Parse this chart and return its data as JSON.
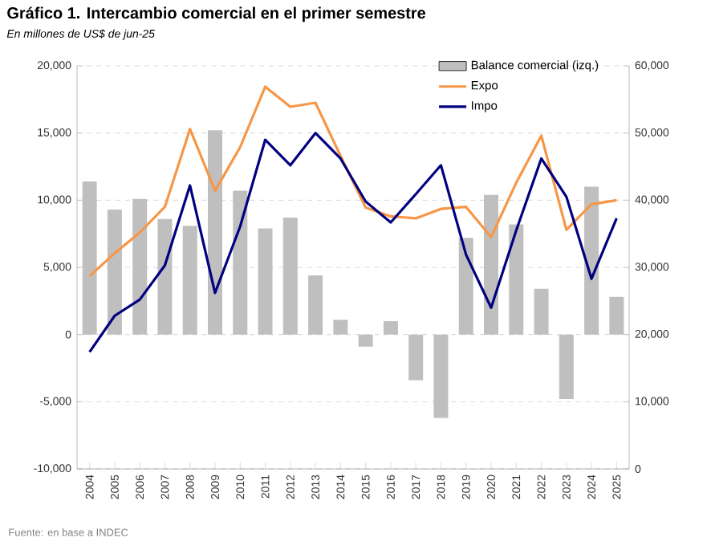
{
  "chart_data": {
    "type": "bar",
    "title": "Gráfico 1. Intercambio comercial en el primer semestre",
    "subtitle": "En millones de US$ de jun-25",
    "annotations": [
      "Fuente: en base a INDEC"
    ],
    "categories": [
      "2004",
      "2005",
      "2006",
      "2007",
      "2008",
      "2009",
      "2010",
      "2011",
      "2012",
      "2013",
      "2014",
      "2015",
      "2016",
      "2017",
      "2018",
      "2019",
      "2020",
      "2021",
      "2022",
      "2023",
      "2024",
      "2025"
    ],
    "series": [
      {
        "name": "Balance comercial (izq.)",
        "color": "#bfbfbf",
        "values": [
          11400,
          9300,
          10100,
          8600,
          8100,
          15200,
          10700,
          7900,
          8700,
          4400,
          1100,
          -900,
          1000,
          -3400,
          -6200,
          7200,
          10400,
          8200,
          3400,
          -4800,
          11000,
          2800
        ]
      },
      {
        "name": "Expo",
        "type": "line",
        "axis": "y2",
        "color": "#f79646",
        "values": [
          28700,
          32100,
          35200,
          39000,
          50600,
          41400,
          47900,
          56900,
          53900,
          54500,
          46600,
          38900,
          37600,
          37300,
          38700,
          39000,
          34500,
          42600,
          49600,
          35600,
          39400,
          40000
        ]
      },
      {
        "name": "Impo",
        "type": "line",
        "axis": "y2",
        "color": "#000080",
        "values": [
          17400,
          22800,
          25200,
          30300,
          42200,
          26200,
          36100,
          49000,
          45200,
          50000,
          46200,
          39800,
          36700,
          40900,
          45200,
          31900,
          24000,
          35500,
          46200,
          40500,
          28300,
          37300
        ]
      }
    ],
    "ylim": [
      -10000,
      20000
    ],
    "yticks": [
      {
        "value": -10000,
        "label": "-10,000"
      },
      {
        "value": -5000,
        "label": "-5,000"
      },
      0,
      {
        "value": 5000,
        "label": "5,000"
      },
      {
        "value": 10000,
        "label": "10,000"
      },
      {
        "value": 15000,
        "label": "15,000"
      },
      {
        "value": 20000,
        "label": "20,000"
      }
    ],
    "y2lim": [
      0,
      60000
    ],
    "y2ticks": [
      0,
      {
        "value": 10000,
        "label": "10,000"
      },
      {
        "value": 20000,
        "label": "20,000"
      },
      {
        "value": 30000,
        "label": "30,000"
      },
      {
        "value": 40000,
        "label": "40,000"
      },
      {
        "value": 50000,
        "label": "50,000"
      },
      {
        "value": 60000,
        "label": "60,000"
      }
    ],
    "grid": "y",
    "legend": "top right"
  }
}
